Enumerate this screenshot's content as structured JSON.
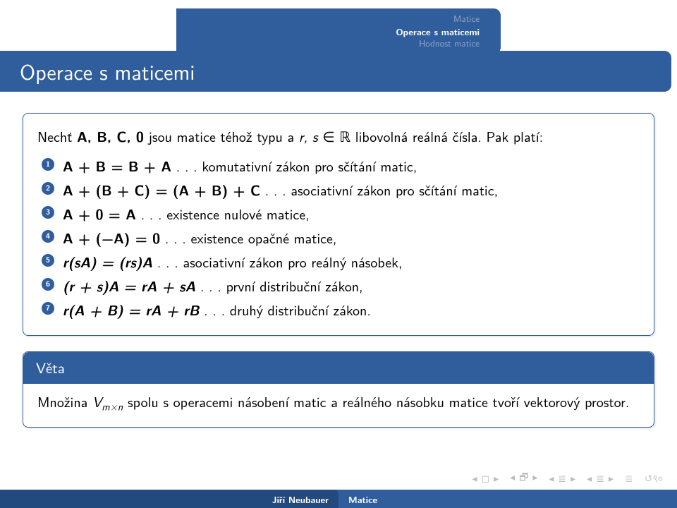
{
  "breadcrumb": {
    "l1": "Matice",
    "l2": "Operace s maticemi",
    "l3": "Hodnost matice"
  },
  "title": "Operace s maticemi",
  "intro": {
    "pre": "Nechť ",
    "abc0": "A, B, C, 0",
    "mid1": " jsou matice téhož typu a ",
    "rs": "r, s",
    "in": " ∈ ",
    "R": "ℝ",
    "tail": " libovolná reálná čísla. Pak platí:"
  },
  "items": [
    {
      "eq": "A + B = B + A",
      "desc": " . . . komutativní zákon pro sčítání matic,"
    },
    {
      "eq": "A + (B + C) = (A + B) + C",
      "desc": " . . . asociativní zákon pro sčítání matic,"
    },
    {
      "eq": "A + 0 = A",
      "desc": " . . . existence nulové matice,"
    },
    {
      "eq": "A + (−A) = 0",
      "desc": " . . . existence opačné matice,"
    },
    {
      "eq": "r(sA) = (rs)A",
      "desc": " . . . asociativní zákon pro reálný násobek,"
    },
    {
      "eq": "(r + s)A = rA + sA",
      "desc": " . . . první distribuční zákon,"
    },
    {
      "eq": "r(A + B) = rA + rB",
      "desc": " . . . druhý distribuční zákon."
    }
  ],
  "theorem": {
    "title": "Věta",
    "pre": "Množina ",
    "V": "V",
    "sub": "m×n",
    "post": " spolu s operacemi násobení matic a reálného násobku matice tvoří vektorový prostor."
  },
  "footer": {
    "author": "Jiří Neubauer",
    "topic": "Matice"
  },
  "colors": {
    "primary": "#305e9c",
    "primary_dark": "#234a7e"
  }
}
